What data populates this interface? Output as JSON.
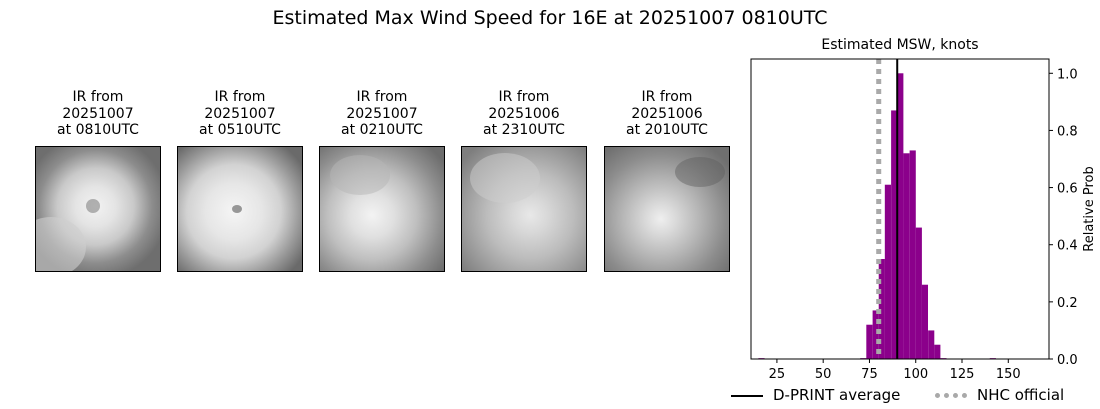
{
  "title": "Estimated Max Wind Speed for 16E at 20251007 0810UTC",
  "ir_panels": [
    {
      "line1": "IR from",
      "line2": "20251007",
      "line3": "at 0810UTC"
    },
    {
      "line1": "IR from",
      "line2": "20251007",
      "line3": "at 0510UTC"
    },
    {
      "line1": "IR from",
      "line2": "20251007",
      "line3": "at 0210UTC"
    },
    {
      "line1": "IR from",
      "line2": "20251006",
      "line3": "at 2310UTC"
    },
    {
      "line1": "IR from",
      "line2": "20251006",
      "line3": "at 2010UTC"
    }
  ],
  "chart_data": {
    "type": "bar",
    "title": "Estimated MSW, knots",
    "xlabel": "",
    "ylabel": "Relative Prob",
    "xlim": [
      11,
      172
    ],
    "ylim": [
      0,
      1.05
    ],
    "x_ticks": [
      25,
      50,
      75,
      100,
      125,
      150
    ],
    "y_ticks": [
      0.0,
      0.2,
      0.4,
      0.6,
      0.8,
      1.0
    ],
    "y_tick_labels": [
      "0.0",
      "0.2",
      "0.4",
      "0.6",
      "0.8",
      "1.0"
    ],
    "y_axis_side": "right",
    "bin_width": 3.33,
    "bins": [
      {
        "x": 15,
        "value": 0.003
      },
      {
        "x": 70,
        "value": 0.003
      },
      {
        "x": 73.3,
        "value": 0.12
      },
      {
        "x": 76.7,
        "value": 0.17
      },
      {
        "x": 80,
        "value": 0.35
      },
      {
        "x": 83.3,
        "value": 0.61
      },
      {
        "x": 86.7,
        "value": 0.87
      },
      {
        "x": 90,
        "value": 1.0
      },
      {
        "x": 93.3,
        "value": 0.72
      },
      {
        "x": 96.7,
        "value": 0.73
      },
      {
        "x": 100,
        "value": 0.46
      },
      {
        "x": 103.3,
        "value": 0.26
      },
      {
        "x": 106.7,
        "value": 0.1
      },
      {
        "x": 110,
        "value": 0.05
      },
      {
        "x": 113.3,
        "value": 0.003
      },
      {
        "x": 140,
        "value": 0.003
      }
    ],
    "dprint_average": 90,
    "nhc_official": 80,
    "bar_color": "#8b008b",
    "dprint_color": "#000000",
    "nhc_color": "#a9a9a9",
    "legend": [
      {
        "label": "D-PRINT average",
        "style": "solid"
      },
      {
        "label": "NHC official",
        "style": "dotted"
      }
    ],
    "legend_placement": "bottom"
  }
}
